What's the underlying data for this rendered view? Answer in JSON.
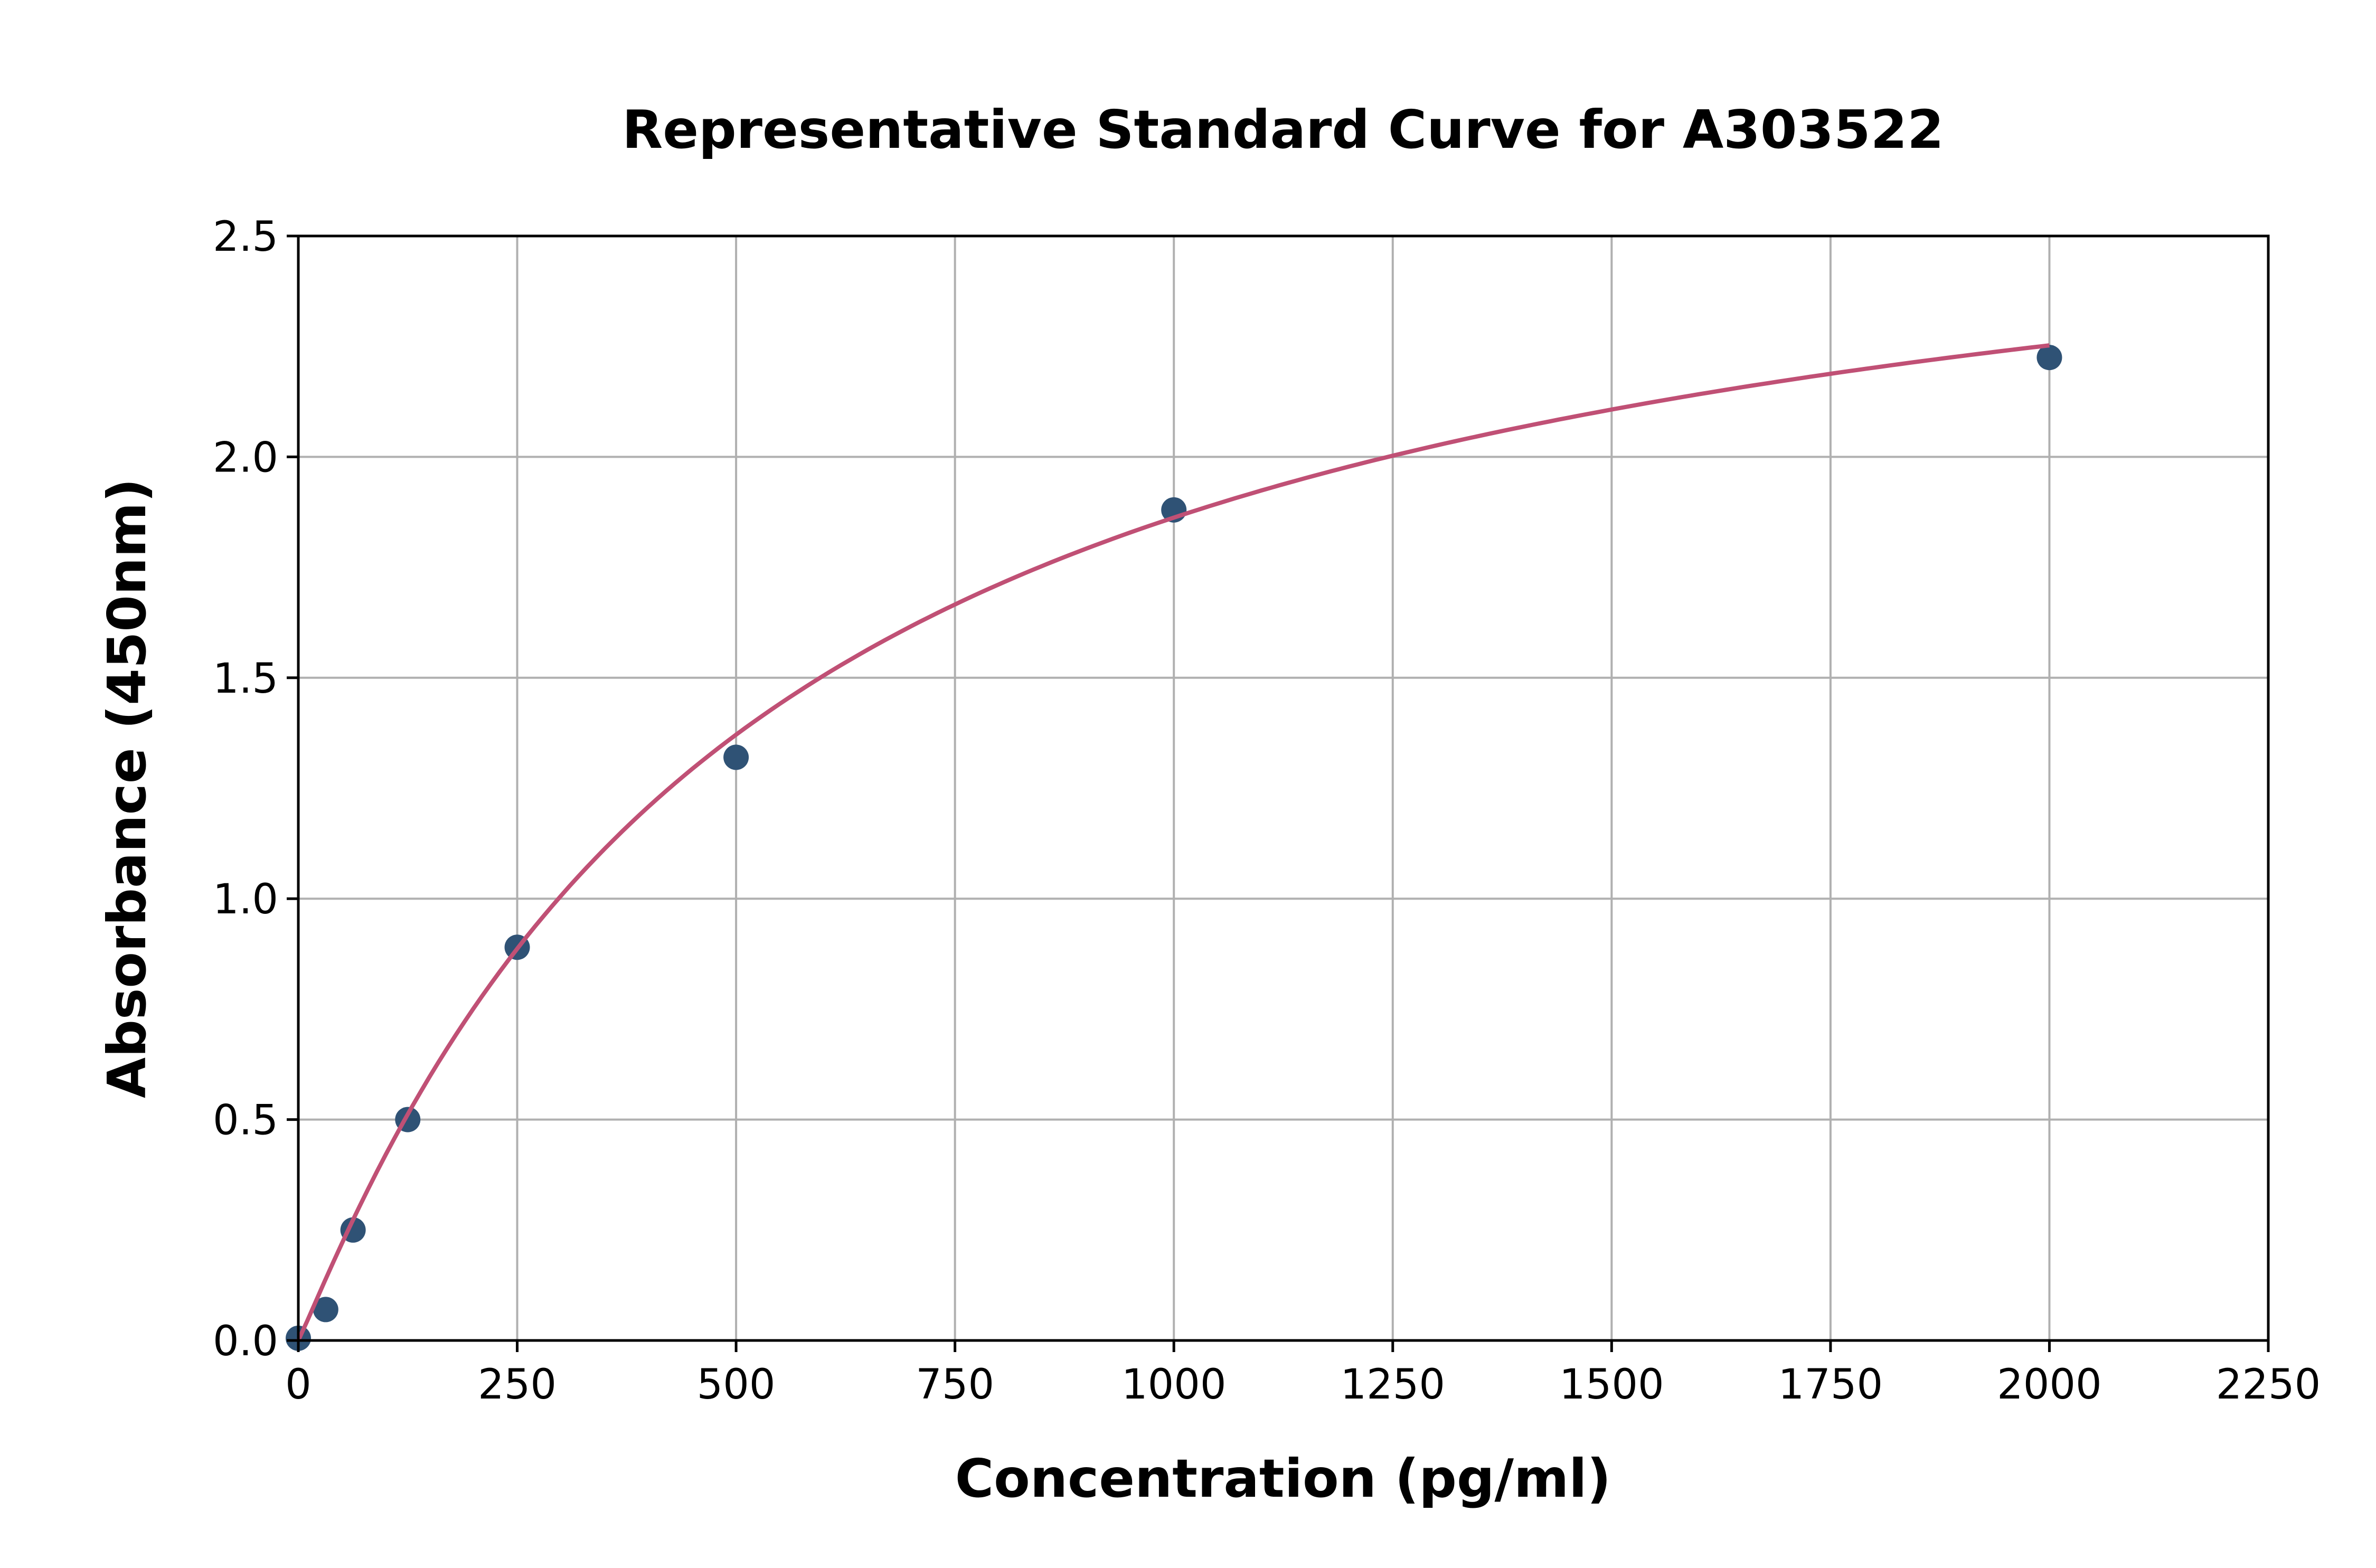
{
  "chart_data": {
    "type": "scatter",
    "title": "Representative Standard Curve for A303522",
    "xlabel": "Concentration (pg/ml)",
    "ylabel": "Absorbance (450nm)",
    "xlim": [
      0,
      2250
    ],
    "ylim": [
      0,
      2.5
    ],
    "xticks": [
      "0",
      "250",
      "500",
      "750",
      "1000",
      "1250",
      "1500",
      "1750",
      "2000",
      "2250"
    ],
    "yticks": [
      "0.0",
      "0.5",
      "1.0",
      "1.5",
      "2.0",
      "2.5"
    ],
    "grid": true,
    "series": [
      {
        "x": [
          0,
          31.25,
          62.5,
          125,
          250,
          500,
          1000,
          2000
        ],
        "y": [
          0.005,
          0.07,
          0.25,
          0.5,
          0.89,
          1.32,
          1.88,
          2.225
        ]
      }
    ],
    "fit_curve": true,
    "colors": {
      "points": "#2f5275",
      "curve": "#c05075",
      "grid": "#b0b0b0"
    }
  }
}
